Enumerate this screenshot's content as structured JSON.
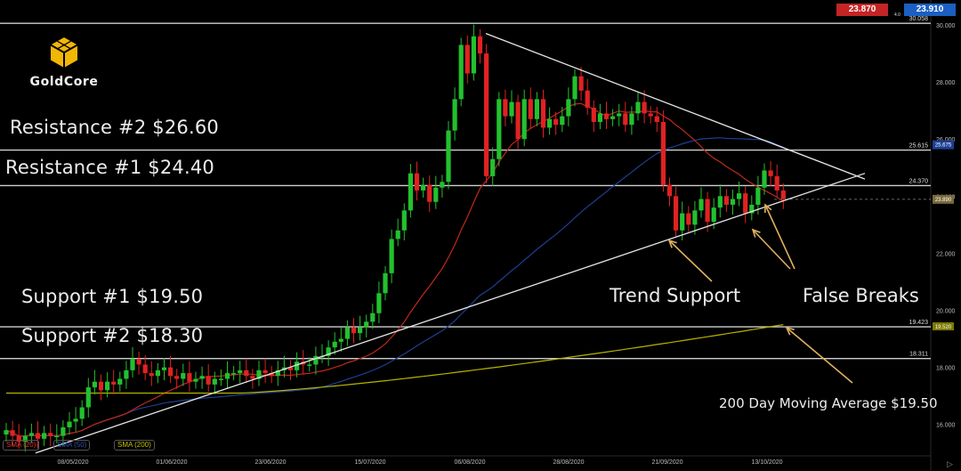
{
  "brand": {
    "name": "GoldCore"
  },
  "quotes": {
    "sell": "23.870",
    "buy": "23.910",
    "spread": "4.0"
  },
  "annotations": {
    "resistance2": "Resistance #2 $26.60",
    "resistance1": "Resistance #1 $24.40",
    "support1": "Support #1 $19.50",
    "support2": "Support #2 $18.30",
    "trend_support": "Trend Support",
    "false_breaks": "False Breaks",
    "ma200": "200 Day Moving Average $19.50"
  },
  "legend": {
    "sma20": "SMA (20)",
    "sma50": "SMA (50)",
    "sma200": "SMA (200)"
  },
  "colors": {
    "up": "#22c12e",
    "down": "#e02222",
    "sma20": "#c0281c",
    "sma50": "#1d3f93",
    "sma200": "#b8b300",
    "level": "#cfcfcf",
    "trend": "#e6e6e6",
    "arrow": "#e0b060"
  },
  "chart_data": {
    "type": "candlestick",
    "y_ticks": [
      "30.000",
      "28.000",
      "26.000",
      "24.000",
      "22.000",
      "20.000",
      "18.000",
      "16.000"
    ],
    "x_ticks": [
      "08/05/2020",
      "01/06/2020",
      "23/06/2020",
      "15/07/2020",
      "06/08/2020",
      "28/08/2020",
      "21/09/2020",
      "13/10/2020"
    ],
    "ylim": [
      14.9,
      30.25
    ],
    "horizontal_levels": [
      {
        "label": "30.058",
        "value": 30.058
      },
      {
        "label": "25.615",
        "value": 25.615
      },
      {
        "label": "24.370",
        "value": 24.37
      },
      {
        "label": "19.423",
        "value": 19.423,
        "tag": "19.520"
      },
      {
        "label": "18.311",
        "value": 18.311
      }
    ],
    "price_tags": [
      {
        "label": "25.675",
        "value": 25.8,
        "color": "#1d3f93"
      },
      {
        "label": "23.890",
        "value": 23.89,
        "color": "#7a6a3a"
      }
    ],
    "closes": [
      15.8,
      15.6,
      15.4,
      15.6,
      15.7,
      15.5,
      15.7,
      15.6,
      15.6,
      15.9,
      16.1,
      16.2,
      16.6,
      17.3,
      17.5,
      17.2,
      17.5,
      17.4,
      17.6,
      17.9,
      18.3,
      18.1,
      17.8,
      17.7,
      17.9,
      18.0,
      17.7,
      17.6,
      17.8,
      17.5,
      17.6,
      17.7,
      17.4,
      17.6,
      17.6,
      17.8,
      17.8,
      17.9,
      17.7,
      17.6,
      17.9,
      17.8,
      17.7,
      17.9,
      18.0,
      17.9,
      18.2,
      18.1,
      18.1,
      18.4,
      18.4,
      18.7,
      18.9,
      19.0,
      19.4,
      19.2,
      19.4,
      19.6,
      19.9,
      20.6,
      21.3,
      22.5,
      22.8,
      23.5,
      24.8,
      24.2,
      24.4,
      23.8,
      24.3,
      24.5,
      26.3,
      27.4,
      29.3,
      28.3,
      29.6,
      29.0,
      24.7,
      25.3,
      27.4,
      26.8,
      27.3,
      26.0,
      27.4,
      26.7,
      27.4,
      26.4,
      26.7,
      26.5,
      26.8,
      27.4,
      28.2,
      27.7,
      27.1,
      26.6,
      26.9,
      26.7,
      26.8,
      26.9,
      26.5,
      26.9,
      27.3,
      26.9,
      26.8,
      26.6,
      24.4,
      24.0,
      22.8,
      23.4,
      23.0,
      23.5,
      23.9,
      23.1,
      23.6,
      24.0,
      23.7,
      23.9,
      24.1,
      23.4,
      23.7,
      24.3,
      24.9,
      24.7,
      24.2,
      23.9
    ]
  }
}
